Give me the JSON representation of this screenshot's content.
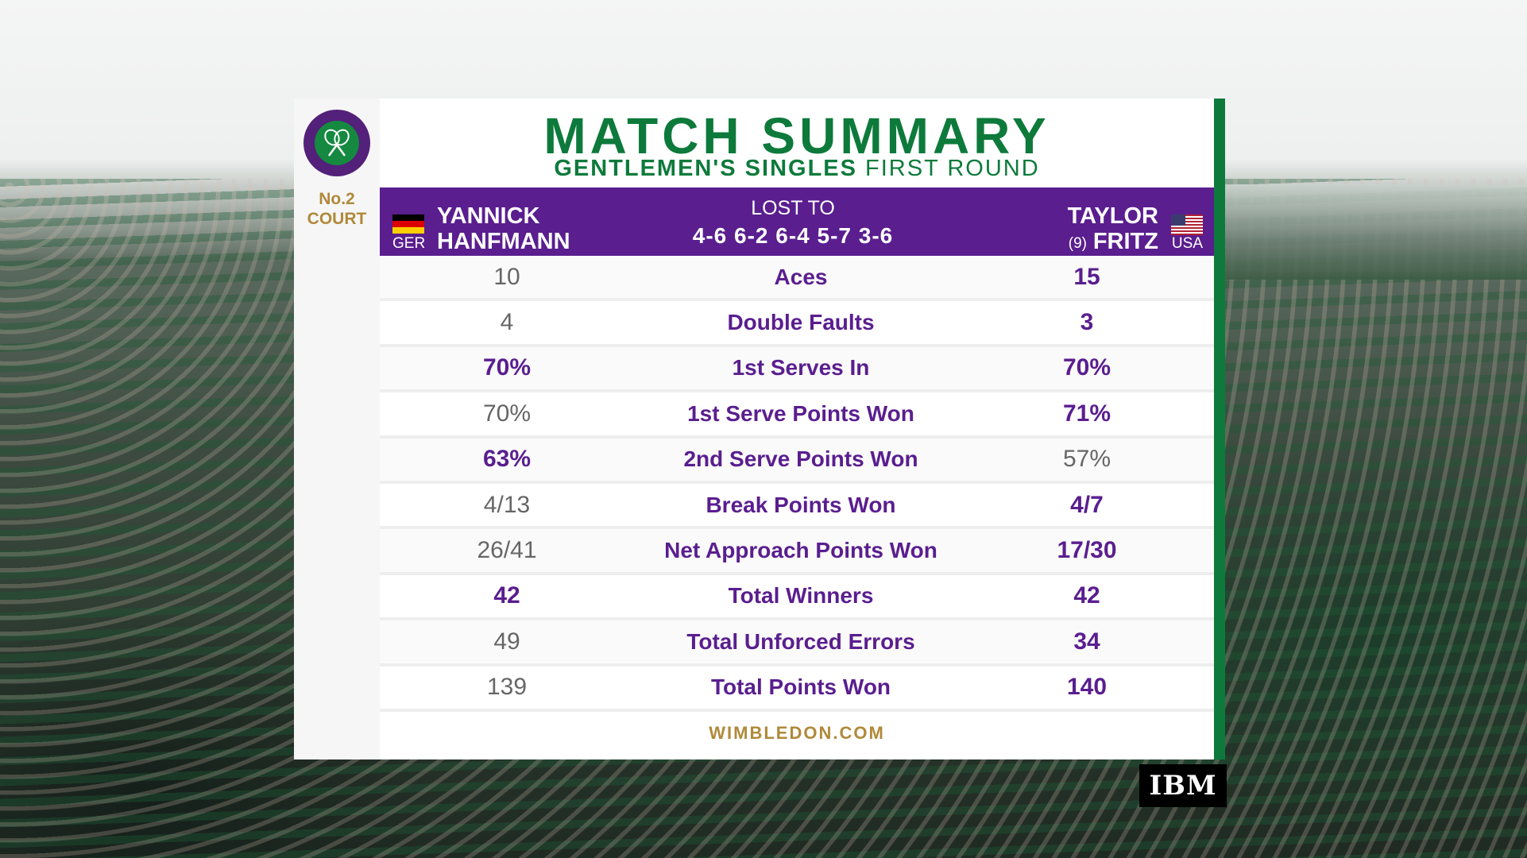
{
  "court": {
    "line1": "No.2",
    "line2": "COURT"
  },
  "title": "MATCH SUMMARY",
  "subtitle": {
    "bold": "GENTLEMEN'S SINGLES",
    "rest": "FIRST ROUND"
  },
  "player1": {
    "country": "GER",
    "first": "YANNICK",
    "last": "HANFMANN"
  },
  "result": {
    "label": "LOST TO",
    "score": "4-6 6-2 6-4 5-7 3-6"
  },
  "player2": {
    "country": "USA",
    "first": "TAYLOR",
    "last": "FRITZ",
    "seed": "(9)"
  },
  "stats": [
    {
      "label": "Aces",
      "p1": "10",
      "p2": "15"
    },
    {
      "label": "Double Faults",
      "p1": "4",
      "p2": "3"
    },
    {
      "label": "1st Serves In",
      "p1": "70%",
      "p2": "70%"
    },
    {
      "label": "1st Serve Points Won",
      "p1": "70%",
      "p2": "71%"
    },
    {
      "label": "2nd Serve Points Won",
      "p1": "63%",
      "p2": "57%"
    },
    {
      "label": "Break Points Won",
      "p1": "4/13",
      "p2": "4/7"
    },
    {
      "label": "Net Approach Points Won",
      "p1": "26/41",
      "p2": "17/30"
    },
    {
      "label": "Total Winners",
      "p1": "42",
      "p2": "42"
    },
    {
      "label": "Total Unforced Errors",
      "p1": "49",
      "p2": "34"
    },
    {
      "label": "Total Points Won",
      "p1": "139",
      "p2": "140"
    }
  ],
  "footer": "WIMBLEDON.COM",
  "sponsor": "IBM",
  "colors": {
    "purple": "#5a1e8f",
    "green": "#0d7a3b",
    "gold": "#b0893a"
  }
}
